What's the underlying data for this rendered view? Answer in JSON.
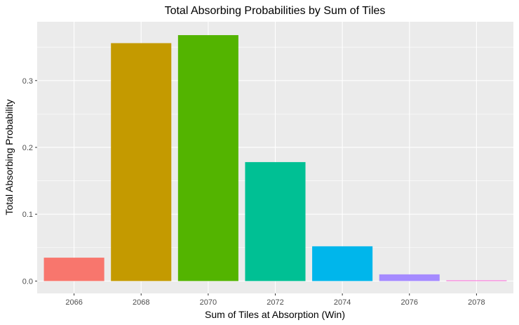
{
  "chart_data": {
    "type": "bar",
    "title": "Total Absorbing Probabilities by Sum of Tiles",
    "xlabel": "Sum of Tiles at Absorption (Win)",
    "ylabel": "Total Absorbing Probability",
    "categories": [
      "2066",
      "2068",
      "2070",
      "2072",
      "2074",
      "2076",
      "2078"
    ],
    "x": [
      2066,
      2068,
      2070,
      2072,
      2074,
      2076,
      2078
    ],
    "values": [
      0.035,
      0.356,
      0.368,
      0.178,
      0.052,
      0.01,
      0.001
    ],
    "colors": [
      "#F8766D",
      "#C49A00",
      "#53B400",
      "#00C094",
      "#00B6EB",
      "#A58AFF",
      "#FB61D7"
    ],
    "xlim": [
      2064.9,
      2079.1
    ],
    "ylim": [
      -0.0185,
      0.388
    ],
    "yticks": [
      0.0,
      0.1,
      0.2,
      0.3
    ],
    "ytick_labels": [
      "0.0",
      "0.1",
      "0.2",
      "0.3"
    ],
    "bar_width": 1.8,
    "grid": true,
    "legend": "none",
    "panel_background": "#EBEBEB",
    "grid_color": "#FFFFFF"
  }
}
